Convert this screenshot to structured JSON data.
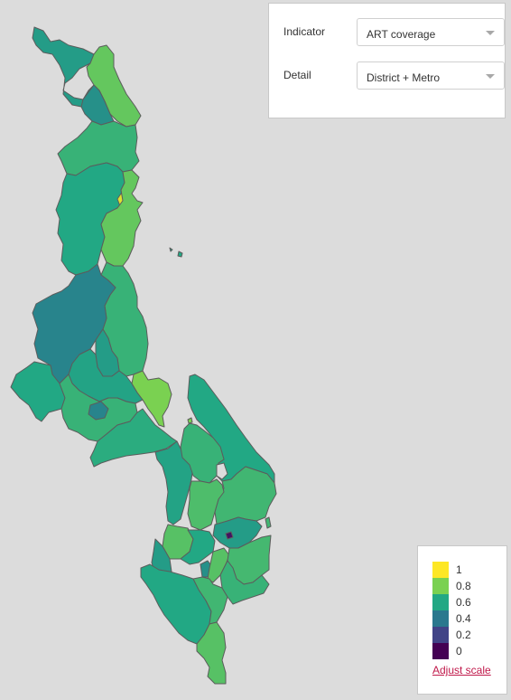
{
  "controls": {
    "indicator": {
      "label": "Indicator",
      "value": "ART coverage"
    },
    "detail": {
      "label": "Detail",
      "value": "District + Metro"
    }
  },
  "legend": {
    "items": [
      {
        "label": "1",
        "color": "#fde725"
      },
      {
        "label": "0.8",
        "color": "#7ad151"
      },
      {
        "label": "0.6",
        "color": "#22a884"
      },
      {
        "label": "0.4",
        "color": "#2a788e"
      },
      {
        "label": "0.2",
        "color": "#414487"
      },
      {
        "label": "0",
        "color": "#440154"
      }
    ],
    "adjust_link": "Adjust scale"
  },
  "map": {
    "background": "#dcdcdc",
    "border_color": "#5c5c5c",
    "regions": [
      {
        "id": "chitipa",
        "value": 0.55
      },
      {
        "id": "karonga",
        "value": 0.75
      },
      {
        "id": "rumphi",
        "value": 0.5
      },
      {
        "id": "north-central",
        "value": 0.65
      },
      {
        "id": "mzimba",
        "value": 0.6
      },
      {
        "id": "mzuzu-city",
        "value": 0.95
      },
      {
        "id": "nkhata-bay",
        "value": 0.75
      },
      {
        "id": "likoma",
        "value": 0.6
      },
      {
        "id": "nkhotakota",
        "value": 0.65
      },
      {
        "id": "kasungu",
        "value": 0.45
      },
      {
        "id": "ntchisi",
        "value": 0.55
      },
      {
        "id": "dowa",
        "value": 0.58
      },
      {
        "id": "lilongwe-city",
        "value": 0.45
      },
      {
        "id": "salima",
        "value": 0.8
      },
      {
        "id": "mchinji",
        "value": 0.6
      },
      {
        "id": "lilongwe",
        "value": 0.65
      },
      {
        "id": "dedza",
        "value": 0.62
      },
      {
        "id": "ntcheu",
        "value": 0.58
      },
      {
        "id": "mangochi",
        "value": 0.6
      },
      {
        "id": "balaka",
        "value": 0.65
      },
      {
        "id": "machinga",
        "value": 0.67
      },
      {
        "id": "zomba",
        "value": 0.7
      },
      {
        "id": "zomba-city",
        "value": 0.05
      },
      {
        "id": "phalombe",
        "value": 0.55
      },
      {
        "id": "blantyre",
        "value": 0.72
      },
      {
        "id": "mwanza",
        "value": 0.55
      },
      {
        "id": "neno",
        "value": 0.6
      },
      {
        "id": "chikwawa",
        "value": 0.6
      },
      {
        "id": "thyolo",
        "value": 0.67
      },
      {
        "id": "blantyre-city",
        "value": 0.5
      },
      {
        "id": "mulanje",
        "value": 0.68
      },
      {
        "id": "chiradzulu",
        "value": 0.72
      },
      {
        "id": "nsanje",
        "value": 0.72
      },
      {
        "id": "chikwawa-east",
        "value": 0.65
      }
    ]
  }
}
